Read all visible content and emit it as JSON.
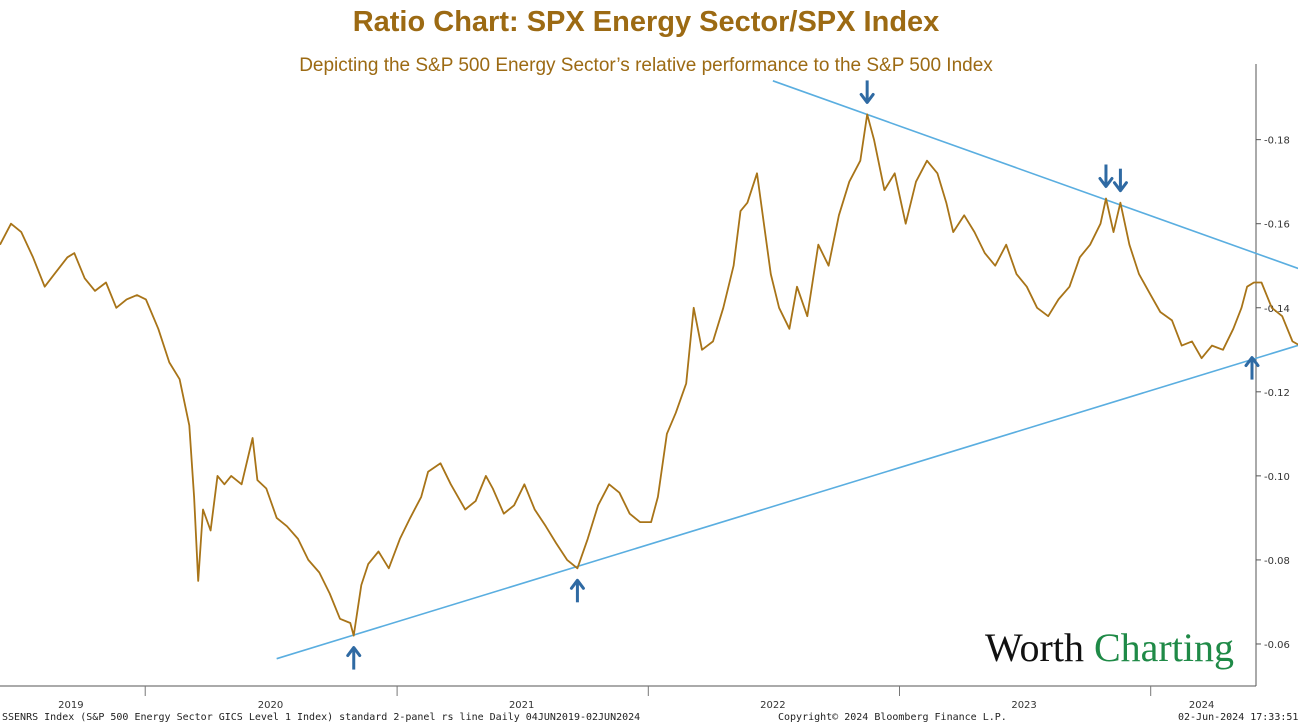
{
  "title": "Ratio Chart: SPX Energy Sector/SPX Index",
  "subtitle": "Depicting the S&P 500 Energy Sector’s relative performance to the S&P 500 Index",
  "footer": {
    "left": "SSENRS Index (S&P 500 Energy Sector GICS Level 1 Index) standard 2-panel rs line  Daily 04JUN2019-02JUN2024",
    "center": "Copyright© 2024 Bloomberg Finance L.P.",
    "right": "02-Jun-2024 17:33:51"
  },
  "logo": {
    "word1": "Worth",
    "word2": "Charting",
    "color1": "#111111",
    "color2": "#1f8a47"
  },
  "colors": {
    "series": "#a87418",
    "trendline": "#5aaee0",
    "arrow": "#2f6aa3",
    "title": "#9c6a13"
  },
  "chart_data": {
    "type": "line",
    "title": "Ratio Chart: SPX Energy Sector/SPX Index",
    "subtitle": "Depicting the S&P 500 Energy Sector’s relative performance to the S&P 500 Index",
    "xlabel": "",
    "ylabel": "",
    "xlim": [
      "2019-06-04",
      "2024-06-02"
    ],
    "ylim": [
      0.05,
      0.198
    ],
    "y_axis_position": "right",
    "y_ticks": [
      0.06,
      0.08,
      0.1,
      0.12,
      0.14,
      0.16,
      0.18
    ],
    "y_tick_labels": [
      "0.06",
      "0.08",
      "0.10",
      "0.12",
      "0.14",
      "0.16",
      "0.18"
    ],
    "x_year_labels": [
      {
        "label": "2019",
        "date": "2019-09-15"
      },
      {
        "label": "2020",
        "date": "2020-07-01"
      },
      {
        "label": "2021",
        "date": "2021-07-01"
      },
      {
        "label": "2022",
        "date": "2022-07-01"
      },
      {
        "label": "2023",
        "date": "2023-07-01"
      },
      {
        "label": "2024",
        "date": "2024-03-15"
      }
    ],
    "x_separators": [
      "2020-01-01",
      "2021-01-01",
      "2022-01-01",
      "2023-01-01",
      "2024-01-01"
    ],
    "grid": false,
    "legend": "none",
    "series": [
      {
        "points": [
          [
            "2019-06-04",
            0.155
          ],
          [
            "2019-06-20",
            0.16
          ],
          [
            "2019-07-05",
            0.158
          ],
          [
            "2019-07-22",
            0.152
          ],
          [
            "2019-08-08",
            0.145
          ],
          [
            "2019-08-22",
            0.148
          ],
          [
            "2019-09-10",
            0.152
          ],
          [
            "2019-09-20",
            0.153
          ],
          [
            "2019-10-05",
            0.147
          ],
          [
            "2019-10-20",
            0.144
          ],
          [
            "2019-11-05",
            0.146
          ],
          [
            "2019-11-20",
            0.14
          ],
          [
            "2019-12-05",
            0.142
          ],
          [
            "2019-12-20",
            0.143
          ],
          [
            "2020-01-02",
            0.142
          ],
          [
            "2020-01-20",
            0.135
          ],
          [
            "2020-02-05",
            0.127
          ],
          [
            "2020-02-20",
            0.123
          ],
          [
            "2020-03-05",
            0.112
          ],
          [
            "2020-03-12",
            0.095
          ],
          [
            "2020-03-18",
            0.075
          ],
          [
            "2020-03-25",
            0.092
          ],
          [
            "2020-04-05",
            0.087
          ],
          [
            "2020-04-15",
            0.1
          ],
          [
            "2020-04-25",
            0.098
          ],
          [
            "2020-05-05",
            0.1
          ],
          [
            "2020-05-20",
            0.098
          ],
          [
            "2020-06-05",
            0.109
          ],
          [
            "2020-06-12",
            0.099
          ],
          [
            "2020-06-25",
            0.097
          ],
          [
            "2020-07-10",
            0.09
          ],
          [
            "2020-07-25",
            0.088
          ],
          [
            "2020-08-10",
            0.085
          ],
          [
            "2020-08-25",
            0.08
          ],
          [
            "2020-09-10",
            0.077
          ],
          [
            "2020-09-25",
            0.072
          ],
          [
            "2020-10-10",
            0.066
          ],
          [
            "2020-10-25",
            0.065
          ],
          [
            "2020-10-30",
            0.062
          ],
          [
            "2020-11-10",
            0.074
          ],
          [
            "2020-11-20",
            0.079
          ],
          [
            "2020-12-05",
            0.082
          ],
          [
            "2020-12-20",
            0.078
          ],
          [
            "2021-01-05",
            0.085
          ],
          [
            "2021-01-20",
            0.09
          ],
          [
            "2021-02-05",
            0.095
          ],
          [
            "2021-02-15",
            0.101
          ],
          [
            "2021-03-05",
            0.103
          ],
          [
            "2021-03-20",
            0.098
          ],
          [
            "2021-04-10",
            0.092
          ],
          [
            "2021-04-25",
            0.094
          ],
          [
            "2021-05-10",
            0.1
          ],
          [
            "2021-05-20",
            0.097
          ],
          [
            "2021-06-05",
            0.091
          ],
          [
            "2021-06-20",
            0.093
          ],
          [
            "2021-07-05",
            0.098
          ],
          [
            "2021-07-20",
            0.092
          ],
          [
            "2021-08-05",
            0.088
          ],
          [
            "2021-08-20",
            0.084
          ],
          [
            "2021-09-05",
            0.08
          ],
          [
            "2021-09-20",
            0.078
          ],
          [
            "2021-10-05",
            0.085
          ],
          [
            "2021-10-20",
            0.093
          ],
          [
            "2021-11-05",
            0.098
          ],
          [
            "2021-11-20",
            0.096
          ],
          [
            "2021-12-05",
            0.091
          ],
          [
            "2021-12-20",
            0.089
          ],
          [
            "2022-01-05",
            0.089
          ],
          [
            "2022-01-15",
            0.095
          ],
          [
            "2022-01-28",
            0.11
          ],
          [
            "2022-02-10",
            0.115
          ],
          [
            "2022-02-25",
            0.122
          ],
          [
            "2022-03-08",
            0.14
          ],
          [
            "2022-03-20",
            0.13
          ],
          [
            "2022-04-05",
            0.132
          ],
          [
            "2022-04-20",
            0.14
          ],
          [
            "2022-05-05",
            0.15
          ],
          [
            "2022-05-15",
            0.163
          ],
          [
            "2022-05-25",
            0.165
          ],
          [
            "2022-06-08",
            0.172
          ],
          [
            "2022-06-18",
            0.16
          ],
          [
            "2022-06-28",
            0.148
          ],
          [
            "2022-07-10",
            0.14
          ],
          [
            "2022-07-25",
            0.135
          ],
          [
            "2022-08-05",
            0.145
          ],
          [
            "2022-08-20",
            0.138
          ],
          [
            "2022-09-05",
            0.155
          ],
          [
            "2022-09-20",
            0.15
          ],
          [
            "2022-10-05",
            0.162
          ],
          [
            "2022-10-20",
            0.17
          ],
          [
            "2022-11-05",
            0.175
          ],
          [
            "2022-11-15",
            0.186
          ],
          [
            "2022-11-25",
            0.18
          ],
          [
            "2022-12-10",
            0.168
          ],
          [
            "2022-12-25",
            0.172
          ],
          [
            "2023-01-10",
            0.16
          ],
          [
            "2023-01-25",
            0.17
          ],
          [
            "2023-02-10",
            0.175
          ],
          [
            "2023-02-25",
            0.172
          ],
          [
            "2023-03-10",
            0.165
          ],
          [
            "2023-03-20",
            0.158
          ],
          [
            "2023-04-05",
            0.162
          ],
          [
            "2023-04-20",
            0.158
          ],
          [
            "2023-05-05",
            0.153
          ],
          [
            "2023-05-20",
            0.15
          ],
          [
            "2023-06-05",
            0.155
          ],
          [
            "2023-06-20",
            0.148
          ],
          [
            "2023-07-05",
            0.145
          ],
          [
            "2023-07-20",
            0.14
          ],
          [
            "2023-08-05",
            0.138
          ],
          [
            "2023-08-20",
            0.142
          ],
          [
            "2023-09-05",
            0.145
          ],
          [
            "2023-09-20",
            0.152
          ],
          [
            "2023-10-05",
            0.155
          ],
          [
            "2023-10-20",
            0.16
          ],
          [
            "2023-10-28",
            0.166
          ],
          [
            "2023-11-08",
            0.158
          ],
          [
            "2023-11-18",
            0.165
          ],
          [
            "2023-12-01",
            0.155
          ],
          [
            "2023-12-15",
            0.148
          ],
          [
            "2024-01-01",
            0.143
          ],
          [
            "2024-01-15",
            0.139
          ],
          [
            "2024-02-01",
            0.137
          ],
          [
            "2024-02-15",
            0.131
          ],
          [
            "2024-03-01",
            0.132
          ],
          [
            "2024-03-15",
            0.128
          ],
          [
            "2024-03-30",
            0.131
          ],
          [
            "2024-04-15",
            0.13
          ],
          [
            "2024-04-30",
            0.135
          ],
          [
            "2024-05-12",
            0.14
          ],
          [
            "2024-05-20",
            0.145
          ],
          [
            "2024-05-30",
            0.146
          ],
          [
            "2024-06-10",
            0.146
          ],
          [
            "2024-06-25",
            0.14
          ],
          [
            "2024-07-10",
            0.138
          ],
          [
            "2024-07-25",
            0.132
          ],
          [
            "2024-08-05",
            0.131
          ],
          [
            "2024-08-15",
            0.134
          ]
        ]
      }
    ],
    "trendlines": [
      {
        "from": [
          "2020-07-10",
          0.0565
        ],
        "to": [
          "2024-09-20",
          0.1335
        ]
      },
      {
        "from": [
          "2022-07-01",
          0.194
        ],
        "to": [
          "2024-09-20",
          0.1465
        ]
      }
    ],
    "arrows": [
      {
        "direction": "up",
        "date": "2020-10-30",
        "value": 0.062
      },
      {
        "direction": "up",
        "date": "2021-09-20",
        "value": 0.078
      },
      {
        "direction": "down",
        "date": "2022-11-15",
        "value": 0.186
      },
      {
        "direction": "down",
        "date": "2023-10-28",
        "value": 0.166
      },
      {
        "direction": "down",
        "date": "2023-11-18",
        "value": 0.165
      },
      {
        "direction": "up",
        "date": "2024-08-05",
        "value": 0.131
      }
    ]
  }
}
